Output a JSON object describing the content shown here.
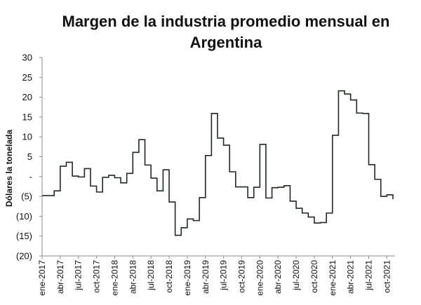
{
  "chart_data": {
    "type": "line",
    "title_lines": [
      "Margen de la industria promedio mensual en",
      "Argentina"
    ],
    "ylabel": "Dólares la tonelada",
    "xlabel": "",
    "ylim": [
      -20,
      30
    ],
    "yticks": [
      -20,
      -15,
      -10,
      -5,
      0,
      5,
      10,
      15,
      20,
      25,
      30
    ],
    "ytick_labels": [
      "(20)",
      "(15)",
      "(10)",
      "(5)",
      "-",
      "5",
      "10",
      "15",
      "20",
      "25",
      "30"
    ],
    "x_tick_labels": [
      "ene-2017",
      "abr-2017",
      "jul-2017",
      "oct-2017",
      "ene-2018",
      "abr-2018",
      "jul-2018",
      "oct-2018",
      "ene-2019",
      "abr-2019",
      "jul-2019",
      "oct-2019",
      "ene-2020",
      "abr-2020",
      "jul-2020",
      "oct-2020",
      "ene-2021",
      "abr-2021",
      "jul-2021",
      "oct-2021"
    ],
    "grid": false,
    "line_color": "#1e2b1e",
    "series": [
      {
        "name": "Margen de la industria",
        "x_start": "ene-2017",
        "frequency": "monthly",
        "step": true,
        "values": [
          -4.8,
          -4.8,
          -3.6,
          2.6,
          3.6,
          0.1,
          -0.1,
          2.0,
          -2.4,
          -3.9,
          -0.2,
          0.3,
          -0.3,
          -1.6,
          0.8,
          6.1,
          9.3,
          2.9,
          -0.4,
          -3.6,
          1.7,
          -6.4,
          -14.8,
          -12.9,
          -10.7,
          -11.1,
          -5.3,
          5.3,
          15.9,
          9.7,
          7.9,
          1.2,
          -2.6,
          -2.6,
          -5.3,
          -2.7,
          8.1,
          -5.4,
          -2.8,
          -2.7,
          -2.3,
          -6.2,
          -8.0,
          -9.2,
          -10.2,
          -11.7,
          -11.6,
          -9.2,
          10.4,
          21.6,
          20.8,
          19.3,
          16.0,
          15.9,
          3.0,
          -0.7,
          -5.0,
          -4.6,
          -5.7
        ]
      }
    ]
  }
}
